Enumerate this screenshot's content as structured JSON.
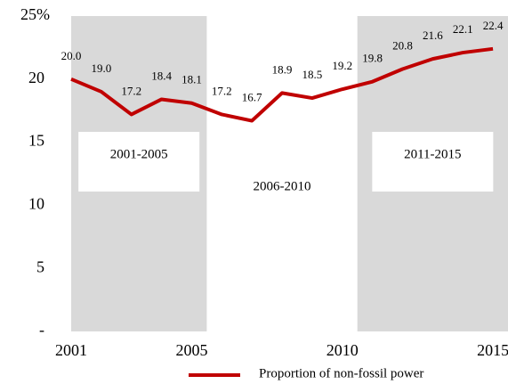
{
  "chart_data": {
    "type": "line",
    "x": [
      2001,
      2002,
      2003,
      2004,
      2005,
      2006,
      2007,
      2008,
      2009,
      2010,
      2011,
      2012,
      2013,
      2014,
      2015
    ],
    "series": [
      {
        "name": "Proportion of non-fossil power",
        "color": "#c00000",
        "values": [
          20.0,
          19.0,
          17.2,
          18.4,
          18.1,
          17.2,
          16.7,
          18.9,
          18.5,
          19.2,
          19.8,
          20.8,
          21.6,
          22.1,
          22.4
        ],
        "value_labels": [
          "20.0",
          "19.0",
          "17.2",
          "18.4",
          "18.1",
          "17.2",
          "16.7",
          "18.9",
          "18.5",
          "19.2",
          "19.8",
          "20.8",
          "21.6",
          "22.1",
          "22.4"
        ]
      }
    ],
    "xlim": [
      2001,
      2015.5
    ],
    "xticks": [
      2001,
      2005,
      2010,
      2015
    ],
    "ylim": [
      0,
      25
    ],
    "yticks": [
      {
        "value": 0,
        "label": "-"
      },
      5,
      10,
      15,
      20,
      {
        "value": 25,
        "label": "25%"
      }
    ],
    "periods": [
      {
        "label": "2001-2005",
        "start": 2001,
        "end": 2005,
        "shaded": true
      },
      {
        "label": "2006-2010",
        "start": 2006,
        "end": 2010,
        "shaded": false
      },
      {
        "label": "2011-2015",
        "start": 2011,
        "end": 2015,
        "shaded": true
      }
    ],
    "shade_color": "#d9d9d9",
    "legend": "bottom"
  }
}
